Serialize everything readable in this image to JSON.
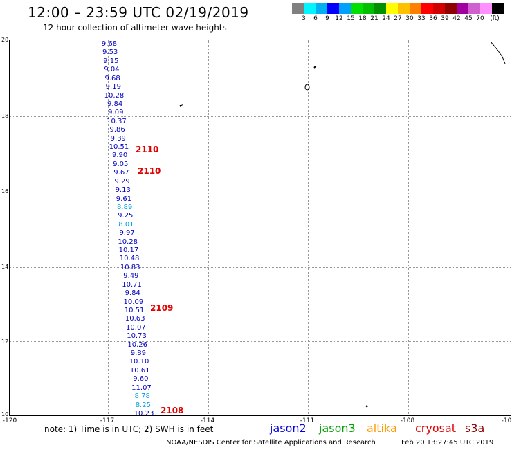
{
  "header": {
    "title": "12:00 – 23:59 UTC 02/19/2019",
    "subtitle": "12 hour collection of altimeter wave heights"
  },
  "scale": {
    "colors": [
      "#808080",
      "#00f5ff",
      "#00b0f0",
      "#0000ff",
      "#00a0ff",
      "#00e000",
      "#00c000",
      "#009000",
      "#ffff00",
      "#ffc000",
      "#ff8000",
      "#ff0000",
      "#d00000",
      "#900000",
      "#a000a0",
      "#d060d0",
      "#ff90ff",
      "#000000"
    ],
    "labels": [
      "3",
      "6",
      "9",
      "12",
      "15",
      "18",
      "21",
      "24",
      "27",
      "30",
      "33",
      "36",
      "39",
      "42",
      "45",
      "70",
      "(ft)"
    ]
  },
  "axes": {
    "ylabels": [
      "20",
      "18",
      "16",
      "14",
      "12",
      "10"
    ],
    "xlabels": [
      "-120",
      "-117",
      "-114",
      "-111",
      "-108",
      "-10"
    ]
  },
  "measurements": [
    {
      "v": "9.68",
      "c": "#0000c0"
    },
    {
      "v": "9.53",
      "c": "#0000c0"
    },
    {
      "v": "9.15",
      "c": "#0000c0"
    },
    {
      "v": "9.04",
      "c": "#0000c0"
    },
    {
      "v": "9.68",
      "c": "#0000c0"
    },
    {
      "v": "9.19",
      "c": "#0000c0"
    },
    {
      "v": "10.28",
      "c": "#0000c0"
    },
    {
      "v": "9.84",
      "c": "#0000c0"
    },
    {
      "v": "9.09",
      "c": "#0000c0"
    },
    {
      "v": "10.37",
      "c": "#0000c0"
    },
    {
      "v": "9.86",
      "c": "#0000c0"
    },
    {
      "v": "9.39",
      "c": "#0000c0"
    },
    {
      "v": "10.51",
      "c": "#0000c0"
    },
    {
      "v": "9.90",
      "c": "#0000c0"
    },
    {
      "v": "9.05",
      "c": "#0000c0"
    },
    {
      "v": "9.67",
      "c": "#0000c0"
    },
    {
      "v": "9.29",
      "c": "#0000c0"
    },
    {
      "v": "9.13",
      "c": "#0000c0"
    },
    {
      "v": "9.61",
      "c": "#0000c0"
    },
    {
      "v": "8.89",
      "c": "#00a0e0"
    },
    {
      "v": "9.25",
      "c": "#0000c0"
    },
    {
      "v": "8.01",
      "c": "#00a0e0"
    },
    {
      "v": "9.97",
      "c": "#0000c0"
    },
    {
      "v": "10.28",
      "c": "#0000c0"
    },
    {
      "v": "10.17",
      "c": "#0000c0"
    },
    {
      "v": "10.48",
      "c": "#0000c0"
    },
    {
      "v": "10.83",
      "c": "#0000c0"
    },
    {
      "v": "9.49",
      "c": "#0000c0"
    },
    {
      "v": "10.71",
      "c": "#0000c0"
    },
    {
      "v": "9.84",
      "c": "#0000c0"
    },
    {
      "v": "10.09",
      "c": "#0000c0"
    },
    {
      "v": "10.51",
      "c": "#0000c0"
    },
    {
      "v": "10.63",
      "c": "#0000c0"
    },
    {
      "v": "10.07",
      "c": "#0000c0"
    },
    {
      "v": "10.73",
      "c": "#0000c0"
    },
    {
      "v": "10.26",
      "c": "#0000c0"
    },
    {
      "v": "9.89",
      "c": "#0000c0"
    },
    {
      "v": "10.10",
      "c": "#0000c0"
    },
    {
      "v": "10.61",
      "c": "#0000c0"
    },
    {
      "v": "9.60",
      "c": "#0000c0"
    },
    {
      "v": "11.07",
      "c": "#0000c0"
    },
    {
      "v": "8.78",
      "c": "#00a0e0"
    },
    {
      "v": "8.25",
      "c": "#00a0e0"
    },
    {
      "v": "10.23",
      "c": "#0000c0"
    }
  ],
  "passes": [
    "2110",
    "2110",
    "2109",
    "2108"
  ],
  "footer": {
    "note": "note: 1) Time is in UTC; 2) SWH is in feet",
    "legend": [
      {
        "label": "jason2",
        "color": "#0000e0"
      },
      {
        "label": "jason3",
        "color": "#00a000"
      },
      {
        "label": "altika",
        "color": "#ff9900"
      },
      {
        "label": "cryosat",
        "color": "#e00000"
      },
      {
        "label": "s3a",
        "color": "#900000"
      }
    ],
    "credit": "NOAA/NESDIS Center for Satellite Applications and Research",
    "date": "Feb 20 13:27:45 UTC 2019"
  }
}
